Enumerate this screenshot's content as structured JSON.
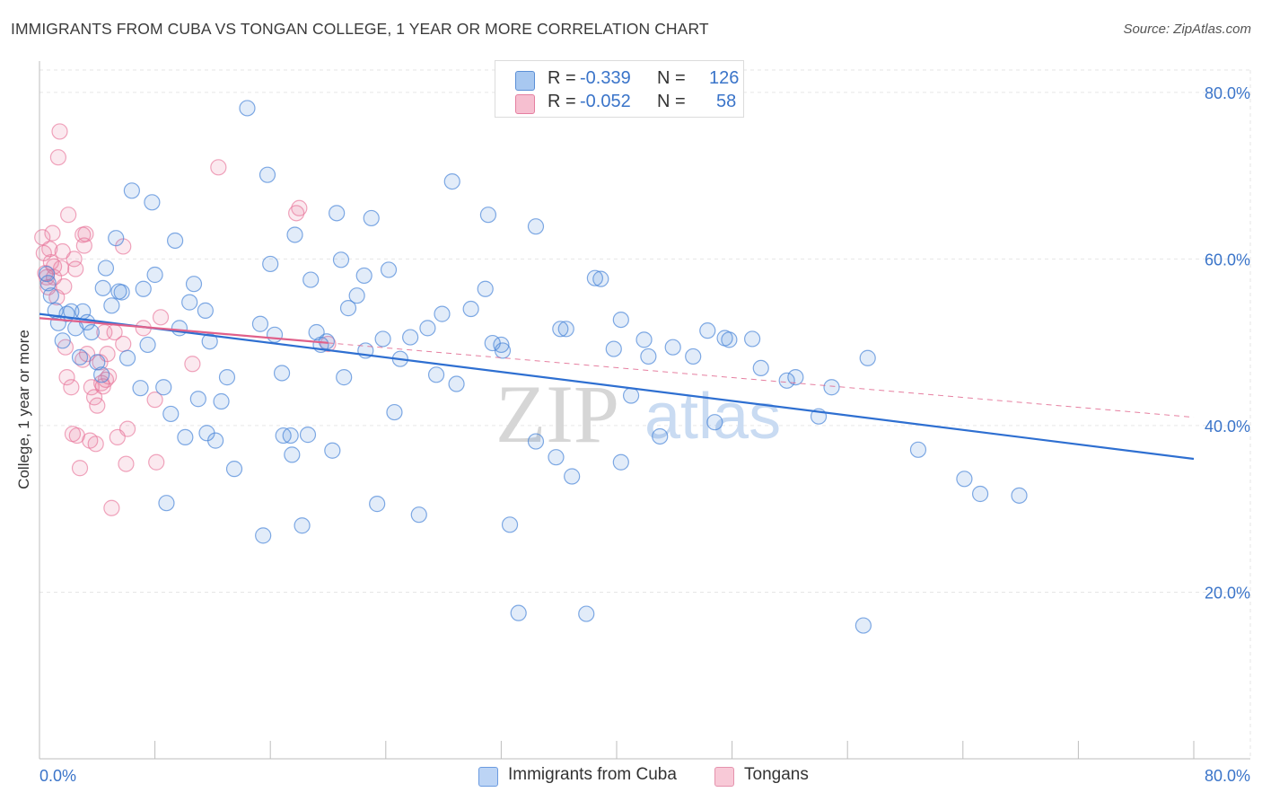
{
  "title": "IMMIGRANTS FROM CUBA VS TONGAN COLLEGE, 1 YEAR OR MORE CORRELATION CHART",
  "source": "Source: ZipAtlas.com",
  "watermark": {
    "zip": "ZIP",
    "atlas": "atlas"
  },
  "legend": {
    "r_label": "R =",
    "n_label": "N =",
    "rows": [
      {
        "r": "-0.339",
        "n": "126",
        "color": "#a8c8f0",
        "border": "#5b8fd6"
      },
      {
        "r": "-0.052",
        "n": "58",
        "color": "#f6bfd0",
        "border": "#e57fa0"
      }
    ]
  },
  "bottom_legend": [
    {
      "label": "Immigrants from Cuba",
      "color": "#bcd4f5",
      "border": "#6b9be0"
    },
    {
      "label": "Tongans",
      "color": "#f8c9d7",
      "border": "#e592ad"
    }
  ],
  "colors": {
    "blue": "#4a86d8",
    "pink": "#e8759a",
    "blue_line": "#2e6fd1",
    "pink_line": "#e0608a",
    "axis_text": "#3a74c9"
  },
  "chart_data": {
    "type": "scatter",
    "title": "IMMIGRANTS FROM CUBA VS TONGAN COLLEGE, 1 YEAR OR MORE CORRELATION CHART",
    "xlabel": "",
    "ylabel": "College, 1 year or more",
    "xlim": [
      0,
      80
    ],
    "ylim": [
      0,
      83
    ],
    "x_tick_labels": [
      "0.0%",
      "80.0%"
    ],
    "y_ticks": [
      20,
      40,
      60,
      80
    ],
    "y_tick_labels": [
      "20.0%",
      "40.0%",
      "60.0%",
      "80.0%"
    ],
    "grid": true,
    "series": [
      {
        "name": "Immigrants from Cuba",
        "r": -0.339,
        "n": 126,
        "trend": {
          "x": [
            0,
            80
          ],
          "y": [
            53.4,
            36.0
          ],
          "style": "solid"
        },
        "points": [
          [
            0.5,
            58.2
          ],
          [
            0.6,
            57.1
          ],
          [
            0.8,
            55.6
          ],
          [
            1.1,
            53.8
          ],
          [
            1.3,
            52.3
          ],
          [
            1.6,
            50.2
          ],
          [
            1.9,
            53.4
          ],
          [
            2.2,
            53.7
          ],
          [
            2.5,
            51.7
          ],
          [
            2.8,
            48.2
          ],
          [
            3.0,
            53.7
          ],
          [
            3.3,
            52.4
          ],
          [
            3.6,
            51.2
          ],
          [
            4.0,
            47.6
          ],
          [
            4.3,
            46.1
          ],
          [
            4.4,
            56.5
          ],
          [
            4.6,
            58.9
          ],
          [
            5.0,
            54.4
          ],
          [
            5.3,
            62.5
          ],
          [
            5.5,
            56.1
          ],
          [
            5.7,
            56.0
          ],
          [
            6.1,
            48.1
          ],
          [
            6.4,
            68.2
          ],
          [
            7.0,
            44.5
          ],
          [
            7.2,
            56.4
          ],
          [
            7.5,
            49.7
          ],
          [
            7.8,
            66.8
          ],
          [
            8.0,
            58.1
          ],
          [
            8.6,
            44.6
          ],
          [
            8.8,
            30.7
          ],
          [
            9.1,
            41.4
          ],
          [
            9.4,
            62.2
          ],
          [
            9.7,
            51.7
          ],
          [
            10.1,
            38.6
          ],
          [
            10.4,
            54.8
          ],
          [
            10.7,
            57.0
          ],
          [
            11.0,
            43.2
          ],
          [
            11.5,
            53.8
          ],
          [
            11.8,
            50.1
          ],
          [
            11.6,
            39.1
          ],
          [
            12.2,
            38.2
          ],
          [
            12.6,
            42.9
          ],
          [
            13.0,
            45.8
          ],
          [
            13.5,
            34.8
          ],
          [
            14.4,
            78.1
          ],
          [
            15.3,
            52.2
          ],
          [
            15.5,
            26.8
          ],
          [
            15.8,
            70.1
          ],
          [
            16.0,
            59.4
          ],
          [
            16.3,
            50.9
          ],
          [
            16.8,
            46.3
          ],
          [
            16.9,
            38.8
          ],
          [
            17.4,
            38.8
          ],
          [
            17.5,
            36.5
          ],
          [
            17.7,
            62.9
          ],
          [
            18.2,
            28.0
          ],
          [
            18.6,
            38.9
          ],
          [
            18.8,
            57.5
          ],
          [
            19.2,
            51.2
          ],
          [
            19.5,
            49.7
          ],
          [
            19.9,
            50.1
          ],
          [
            20.3,
            37.0
          ],
          [
            20.6,
            65.5
          ],
          [
            20.9,
            59.9
          ],
          [
            21.1,
            45.8
          ],
          [
            21.4,
            54.1
          ],
          [
            22.0,
            55.6
          ],
          [
            22.6,
            49.0
          ],
          [
            23.0,
            64.9
          ],
          [
            22.5,
            58.0
          ],
          [
            23.4,
            30.6
          ],
          [
            23.8,
            50.4
          ],
          [
            24.2,
            58.7
          ],
          [
            24.6,
            41.6
          ],
          [
            25.0,
            48.0
          ],
          [
            25.7,
            50.6
          ],
          [
            26.3,
            29.3
          ],
          [
            26.9,
            51.7
          ],
          [
            27.5,
            46.1
          ],
          [
            27.9,
            53.4
          ],
          [
            28.6,
            69.3
          ],
          [
            28.9,
            45.0
          ],
          [
            29.9,
            54.0
          ],
          [
            30.9,
            56.4
          ],
          [
            31.1,
            65.3
          ],
          [
            31.4,
            49.9
          ],
          [
            32.1,
            49.0
          ],
          [
            32.6,
            28.1
          ],
          [
            33.2,
            17.5
          ],
          [
            32.0,
            49.7
          ],
          [
            34.4,
            63.9
          ],
          [
            34.4,
            38.1
          ],
          [
            36.1,
            51.6
          ],
          [
            36.5,
            51.6
          ],
          [
            35.8,
            36.2
          ],
          [
            36.9,
            33.9
          ],
          [
            37.9,
            17.4
          ],
          [
            38.5,
            57.7
          ],
          [
            38.9,
            57.6
          ],
          [
            39.8,
            49.2
          ],
          [
            40.3,
            35.6
          ],
          [
            40.3,
            52.7
          ],
          [
            41.0,
            43.6
          ],
          [
            41.9,
            50.3
          ],
          [
            42.2,
            48.3
          ],
          [
            43.0,
            38.7
          ],
          [
            43.9,
            49.4
          ],
          [
            45.3,
            48.3
          ],
          [
            46.3,
            51.4
          ],
          [
            46.8,
            40.4
          ],
          [
            47.5,
            50.5
          ],
          [
            47.8,
            50.3
          ],
          [
            49.4,
            50.4
          ],
          [
            50.0,
            46.9
          ],
          [
            51.8,
            45.4
          ],
          [
            52.4,
            45.8
          ],
          [
            54.0,
            41.1
          ],
          [
            54.9,
            44.6
          ],
          [
            57.1,
            16.0
          ],
          [
            57.4,
            48.1
          ],
          [
            60.9,
            37.1
          ],
          [
            64.1,
            33.6
          ],
          [
            65.2,
            31.8
          ],
          [
            67.9,
            31.6
          ]
        ]
      },
      {
        "name": "Tongans",
        "r": -0.052,
        "n": 58,
        "trend": {
          "x": [
            0,
            80
          ],
          "y": [
            52.9,
            41.0
          ],
          "style": "dashed",
          "solid_until": 20
        },
        "points": [
          [
            0.2,
            62.6
          ],
          [
            0.3,
            60.7
          ],
          [
            0.4,
            58.3
          ],
          [
            0.5,
            57.8
          ],
          [
            0.6,
            56.6
          ],
          [
            0.7,
            61.2
          ],
          [
            0.8,
            59.6
          ],
          [
            0.9,
            63.1
          ],
          [
            1.0,
            59.1
          ],
          [
            1.0,
            57.8
          ],
          [
            1.2,
            55.4
          ],
          [
            1.3,
            72.2
          ],
          [
            1.4,
            75.3
          ],
          [
            1.5,
            58.9
          ],
          [
            1.6,
            60.9
          ],
          [
            1.7,
            56.7
          ],
          [
            1.8,
            49.4
          ],
          [
            1.9,
            45.8
          ],
          [
            2.0,
            65.3
          ],
          [
            2.2,
            44.6
          ],
          [
            2.3,
            39.0
          ],
          [
            2.4,
            60.0
          ],
          [
            2.5,
            58.8
          ],
          [
            2.6,
            38.8
          ],
          [
            2.8,
            34.9
          ],
          [
            3.0,
            62.9
          ],
          [
            3.0,
            47.9
          ],
          [
            3.1,
            61.6
          ],
          [
            3.2,
            63.0
          ],
          [
            3.3,
            48.6
          ],
          [
            3.5,
            38.2
          ],
          [
            3.6,
            44.6
          ],
          [
            3.8,
            43.4
          ],
          [
            3.9,
            37.8
          ],
          [
            4.0,
            42.4
          ],
          [
            4.2,
            47.6
          ],
          [
            4.3,
            45.1
          ],
          [
            4.4,
            44.7
          ],
          [
            4.5,
            51.2
          ],
          [
            4.6,
            45.5
          ],
          [
            4.7,
            48.6
          ],
          [
            4.8,
            45.9
          ],
          [
            5.0,
            30.1
          ],
          [
            5.2,
            51.2
          ],
          [
            5.4,
            38.6
          ],
          [
            5.8,
            49.8
          ],
          [
            5.8,
            61.5
          ],
          [
            6.0,
            35.4
          ],
          [
            6.1,
            39.6
          ],
          [
            7.2,
            51.7
          ],
          [
            8.0,
            43.1
          ],
          [
            8.1,
            35.6
          ],
          [
            8.4,
            53.0
          ],
          [
            10.6,
            47.4
          ],
          [
            12.4,
            71.0
          ],
          [
            17.8,
            65.5
          ],
          [
            18.0,
            66.1
          ],
          [
            20.0,
            49.8
          ]
        ]
      }
    ]
  }
}
